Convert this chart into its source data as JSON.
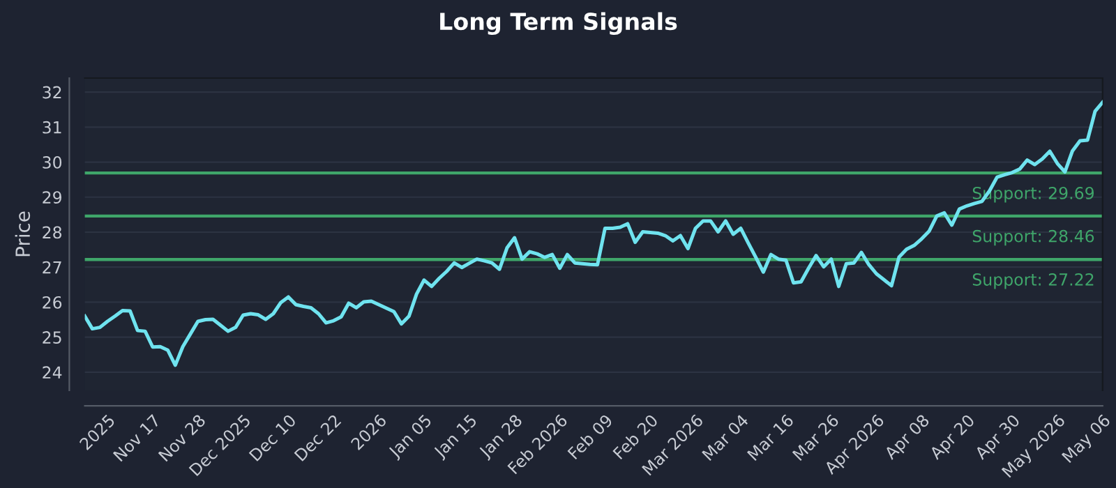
{
  "chart_data": {
    "type": "line",
    "title": "Long Term Signals",
    "ylabel": "Price",
    "categories": [
      null,
      null,
      null,
      "2025",
      null,
      null,
      null,
      null,
      null,
      "Nov 17",
      null,
      null,
      null,
      null,
      null,
      "Nov 28",
      null,
      null,
      null,
      null,
      null,
      "Dec 2025",
      null,
      null,
      null,
      null,
      null,
      "Dec 10",
      null,
      null,
      null,
      null,
      null,
      "Dec 22",
      null,
      null,
      null,
      null,
      null,
      "2026",
      null,
      null,
      null,
      null,
      null,
      "Jan 05",
      null,
      null,
      null,
      null,
      null,
      "Jan 15",
      null,
      null,
      null,
      null,
      null,
      "Jan 28",
      null,
      null,
      null,
      null,
      null,
      "Feb 2026",
      null,
      null,
      null,
      null,
      null,
      "Feb 09",
      null,
      null,
      null,
      null,
      null,
      "Feb 20",
      null,
      null,
      null,
      null,
      null,
      "Mar 2026",
      null,
      null,
      null,
      null,
      null,
      "Mar 04",
      null,
      null,
      null,
      null,
      null,
      "Mar 16",
      null,
      null,
      null,
      null,
      null,
      "Mar 26",
      null,
      null,
      null,
      null,
      null,
      "Apr 2026",
      null,
      null,
      null,
      null,
      null,
      "Apr 08",
      null,
      null,
      null,
      null,
      null,
      "Apr 20",
      null,
      null,
      null,
      null,
      null,
      "Apr 30",
      null,
      null,
      null,
      null,
      null,
      "May 2026",
      null,
      null,
      null,
      null,
      null,
      "May 06"
    ],
    "series": [
      {
        "color": "#6fe3ef",
        "values": [
          25.6,
          25.24,
          25.28,
          25.45,
          25.6,
          25.76,
          25.75,
          25.19,
          25.17,
          24.72,
          24.73,
          24.63,
          24.2,
          24.73,
          25.09,
          25.45,
          25.5,
          25.51,
          25.34,
          25.17,
          25.28,
          25.63,
          25.67,
          25.64,
          25.51,
          25.67,
          25.99,
          26.15,
          25.93,
          25.88,
          25.84,
          25.67,
          25.41,
          25.47,
          25.58,
          25.97,
          25.84,
          26.01,
          26.03,
          25.93,
          25.83,
          25.73,
          25.38,
          25.6,
          26.23,
          26.63,
          26.45,
          26.68,
          26.88,
          27.12,
          26.99,
          27.11,
          27.23,
          27.18,
          27.12,
          26.94,
          27.55,
          27.84,
          27.23,
          27.44,
          27.38,
          27.28,
          27.36,
          26.97,
          27.36,
          27.12,
          27.1,
          27.08,
          27.07,
          28.11,
          28.11,
          28.14,
          28.24,
          27.71,
          28.01,
          27.99,
          27.97,
          27.9,
          27.75,
          27.9,
          27.53,
          28.11,
          28.32,
          28.32,
          28.01,
          28.32,
          27.94,
          28.11,
          27.69,
          27.28,
          26.86,
          27.36,
          27.23,
          27.2,
          26.55,
          26.58,
          26.97,
          27.33,
          27.01,
          27.23,
          26.45,
          27.1,
          27.12,
          27.42,
          27.07,
          26.81,
          26.64,
          26.47,
          27.29,
          27.51,
          27.62,
          27.81,
          28.03,
          28.46,
          28.55,
          28.2,
          28.66,
          28.75,
          28.82,
          28.88,
          29.18,
          29.57,
          29.64,
          29.7,
          29.8,
          30.06,
          29.93,
          30.09,
          30.31,
          29.96,
          29.72,
          30.32,
          30.61,
          30.63,
          31.45,
          31.71
        ]
      }
    ],
    "ylim": [
      23.48,
      32.4
    ],
    "yticks": [
      24,
      25,
      26,
      27,
      28,
      29,
      30,
      31,
      32
    ],
    "ref_lines": [
      {
        "axis": "y",
        "value": 29.69,
        "label": "Support: 29.69",
        "color": "#3fa66a"
      },
      {
        "axis": "y",
        "value": 28.46,
        "label": "Support: 28.46",
        "color": "#3fa66a"
      },
      {
        "axis": "y",
        "value": 27.22,
        "label": "Support: 27.22",
        "color": "#3fa66a"
      }
    ],
    "grid": "y",
    "marker": "none",
    "line_style": "solid"
  }
}
